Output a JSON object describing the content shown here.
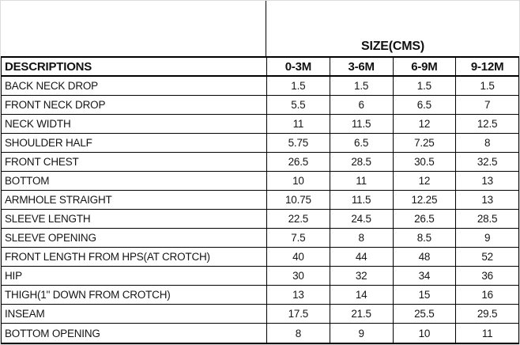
{
  "sheet": {
    "size_group_header": "SIZE(CMS)",
    "header": {
      "descriptions": "DESCRIPTIONS",
      "sizes": [
        "0-3M",
        "3-6M",
        "6-9M",
        "9-12M"
      ]
    },
    "rows": [
      {
        "label": "BACK NECK DROP",
        "values": [
          "1.5",
          "1.5",
          "1.5",
          "1.5"
        ]
      },
      {
        "label": "FRONT NECK DROP",
        "values": [
          "5.5",
          "6",
          "6.5",
          "7"
        ]
      },
      {
        "label": "NECK WIDTH",
        "values": [
          "11",
          "11.5",
          "12",
          "12.5"
        ]
      },
      {
        "label": "SHOULDER HALF",
        "values": [
          "5.75",
          "6.5",
          "7.25",
          "8"
        ]
      },
      {
        "label": "FRONT CHEST",
        "values": [
          "26.5",
          "28.5",
          "30.5",
          "32.5"
        ]
      },
      {
        "label": "BOTTOM",
        "values": [
          "10",
          "11",
          "12",
          "13"
        ]
      },
      {
        "label": "ARMHOLE STRAIGHT",
        "values": [
          "10.75",
          "11.5",
          "12.25",
          "13"
        ]
      },
      {
        "label": "SLEEVE LENGTH",
        "values": [
          "22.5",
          "24.5",
          "26.5",
          "28.5"
        ]
      },
      {
        "label": "SLEEVE OPENING",
        "values": [
          "7.5",
          "8",
          "8.5",
          "9"
        ]
      },
      {
        "label": "FRONT LENGTH FROM HPS(AT CROTCH)",
        "values": [
          "40",
          "44",
          "48",
          "52"
        ]
      },
      {
        "label": "HIP",
        "values": [
          "30",
          "32",
          "34",
          "36"
        ]
      },
      {
        "label": "THIGH(1\" DOWN FROM CROTCH)",
        "values": [
          "13",
          "14",
          "15",
          "16"
        ]
      },
      {
        "label": "INSEAM",
        "values": [
          "17.5",
          "21.5",
          "25.5",
          "29.5"
        ]
      },
      {
        "label": "BOTTOM OPENING",
        "values": [
          "8",
          "9",
          "10",
          "11"
        ]
      }
    ],
    "colors": {
      "border": "#000000",
      "frame": "#dcdcdc",
      "text": "#151515",
      "background": "#ffffff"
    }
  }
}
